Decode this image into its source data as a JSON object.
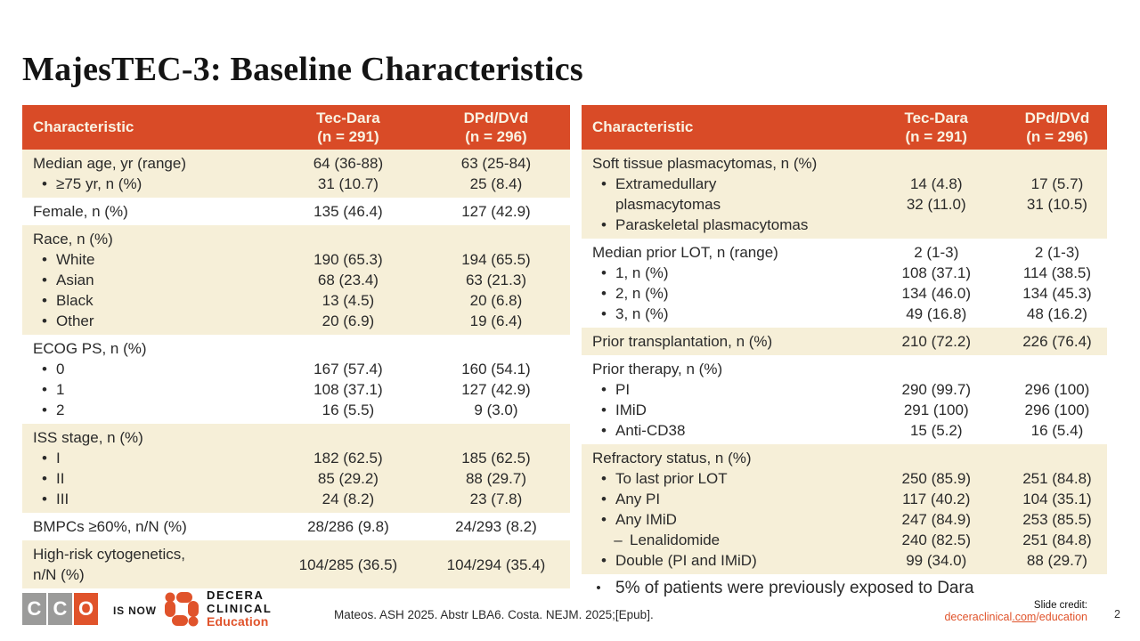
{
  "title": "MajesTEC-3: Baseline Characteristics",
  "colors": {
    "header_bg": "#D94B27",
    "header_text": "#F9F2E2",
    "row_cream": "#F6EFD8",
    "row_white": "#FFFFFF",
    "body_text": "#2A2A2A",
    "brand_orange": "#E0532B",
    "cco_gray": "#9B9B9A"
  },
  "tables": {
    "left": {
      "header": {
        "characteristic": "Characteristic",
        "col1": [
          "Tec-Dara",
          "(n = 291)"
        ],
        "col2": [
          "DPd/DVd",
          "(n = 296)"
        ]
      },
      "rows": [
        {
          "bg": "cream",
          "label": [
            {
              "t": "Median age, yr (range)",
              "lvl": 0
            },
            {
              "t": "≥75 yr, n (%)",
              "lvl": 1
            }
          ],
          "col1": [
            "64 (36-88)",
            "31 (10.7)"
          ],
          "col2": [
            "63 (25-84)",
            "25 (8.4)"
          ]
        },
        {
          "bg": "white",
          "label": [
            {
              "t": "Female, n (%)",
              "lvl": 0
            }
          ],
          "col1": [
            "135 (46.4)"
          ],
          "col2": [
            "127 (42.9)"
          ]
        },
        {
          "bg": "cream",
          "label": [
            {
              "t": "Race, n (%)",
              "lvl": 0
            },
            {
              "t": "White",
              "lvl": 1
            },
            {
              "t": "Asian",
              "lvl": 1
            },
            {
              "t": "Black",
              "lvl": 1
            },
            {
              "t": "Other",
              "lvl": 1
            }
          ],
          "col1": [
            "",
            "190 (65.3)",
            "68 (23.4)",
            "13 (4.5)",
            "20 (6.9)"
          ],
          "col2": [
            "",
            "194 (65.5)",
            "63 (21.3)",
            "20 (6.8)",
            "19 (6.4)"
          ]
        },
        {
          "bg": "white",
          "label": [
            {
              "t": "ECOG PS, n (%)",
              "lvl": 0
            },
            {
              "t": "0",
              "lvl": 1
            },
            {
              "t": "1",
              "lvl": 1
            },
            {
              "t": "2",
              "lvl": 1
            }
          ],
          "col1": [
            "",
            "167 (57.4)",
            "108 (37.1)",
            "16 (5.5)"
          ],
          "col2": [
            "",
            "160 (54.1)",
            "127 (42.9)",
            "9 (3.0)"
          ]
        },
        {
          "bg": "cream",
          "label": [
            {
              "t": "ISS stage, n (%)",
              "lvl": 0
            },
            {
              "t": "I",
              "lvl": 1
            },
            {
              "t": "II",
              "lvl": 1
            },
            {
              "t": "III",
              "lvl": 1
            }
          ],
          "col1": [
            "",
            "182 (62.5)",
            "85 (29.2)",
            "24 (8.2)"
          ],
          "col2": [
            "",
            "185 (62.5)",
            "88 (29.7)",
            "23 (7.8)"
          ]
        },
        {
          "bg": "white",
          "label": [
            {
              "t": "BMPCs ≥60%, n/N (%)",
              "lvl": 0
            }
          ],
          "col1": [
            "28/286 (9.8)"
          ],
          "col2": [
            "24/293 (8.2)"
          ]
        },
        {
          "bg": "cream",
          "valign": "center",
          "label": [
            {
              "t": "High-risk cytogenetics,",
              "lvl": 0
            },
            {
              "t": "n/N (%)",
              "lvl": 0
            }
          ],
          "col1": [
            "104/285 (36.5)"
          ],
          "col2": [
            "104/294 (35.4)"
          ]
        }
      ]
    },
    "right": {
      "header": {
        "characteristic": "Characteristic",
        "col1": [
          "Tec-Dara",
          "(n = 291)"
        ],
        "col2": [
          "DPd/DVd",
          "(n = 296)"
        ]
      },
      "rows": [
        {
          "bg": "cream",
          "valign": "center",
          "label": [
            {
              "t": "Soft tissue plasmacytomas, n (%)",
              "lvl": 0
            },
            {
              "t": "Extramedullary",
              "lvl": 1
            },
            {
              "t": "plasmacytomas",
              "lvl": 2
            },
            {
              "t": "Paraskeletal plasmacytomas",
              "lvl": 1
            }
          ],
          "col1": [
            "14 (4.8)",
            "32 (11.0)"
          ],
          "col2": [
            "17 (5.7)",
            "31 (10.5)"
          ]
        },
        {
          "bg": "white",
          "label": [
            {
              "t": "Median prior LOT, n (range)",
              "lvl": 0
            },
            {
              "t": "1, n (%)",
              "lvl": 1
            },
            {
              "t": "2, n (%)",
              "lvl": 1
            },
            {
              "t": "3, n (%)",
              "lvl": 1
            }
          ],
          "col1": [
            "2 (1-3)",
            "108 (37.1)",
            "134 (46.0)",
            "49 (16.8)"
          ],
          "col2": [
            "2 (1-3)",
            "114 (38.5)",
            "134 (45.3)",
            "48 (16.2)"
          ]
        },
        {
          "bg": "cream",
          "label": [
            {
              "t": "Prior transplantation, n (%)",
              "lvl": 0
            }
          ],
          "col1": [
            "210 (72.2)"
          ],
          "col2": [
            "226 (76.4)"
          ]
        },
        {
          "bg": "white",
          "label": [
            {
              "t": "Prior therapy, n (%)",
              "lvl": 0
            },
            {
              "t": "PI",
              "lvl": 1
            },
            {
              "t": "IMiD",
              "lvl": 1
            },
            {
              "t": "Anti-CD38",
              "lvl": 1
            }
          ],
          "col1": [
            "",
            "290 (99.7)",
            "291 (100)",
            "15 (5.2)"
          ],
          "col2": [
            "",
            "296 (100)",
            "296 (100)",
            "16 (5.4)"
          ]
        },
        {
          "bg": "cream",
          "label": [
            {
              "t": "Refractory status, n (%)",
              "lvl": 0
            },
            {
              "t": "To last prior LOT",
              "lvl": 1
            },
            {
              "t": "Any PI",
              "lvl": 1
            },
            {
              "t": "Any IMiD",
              "lvl": 1
            },
            {
              "t": "Lenalidomide",
              "lvl": 3
            },
            {
              "t": "Double (PI and IMiD)",
              "lvl": 1
            }
          ],
          "col1": [
            "",
            "250 (85.9)",
            "117 (40.2)",
            "247 (84.9)",
            "240 (82.5)",
            "99 (34.0)"
          ],
          "col2": [
            "",
            "251 (84.8)",
            "104 (35.1)",
            "253 (85.5)",
            "251 (84.8)",
            "88 (29.7)"
          ]
        }
      ]
    }
  },
  "note": "5% of patients were previously exposed to Dara",
  "footer": {
    "cco_letters": [
      "C",
      "C",
      "O"
    ],
    "is_now": "IS NOW",
    "brand_line1": "DECERA",
    "brand_line2": "CLINICAL",
    "brand_line3": "Education",
    "citation": "Mateos. ASH 2025. Abstr LBA6. Costa. NEJM. 2025;[Epub].",
    "slide_credit_label": "Slide credit:",
    "link_pre": "deceraclinical",
    "link_mid": ".com",
    "link_post": "/education",
    "page_number": "2"
  }
}
